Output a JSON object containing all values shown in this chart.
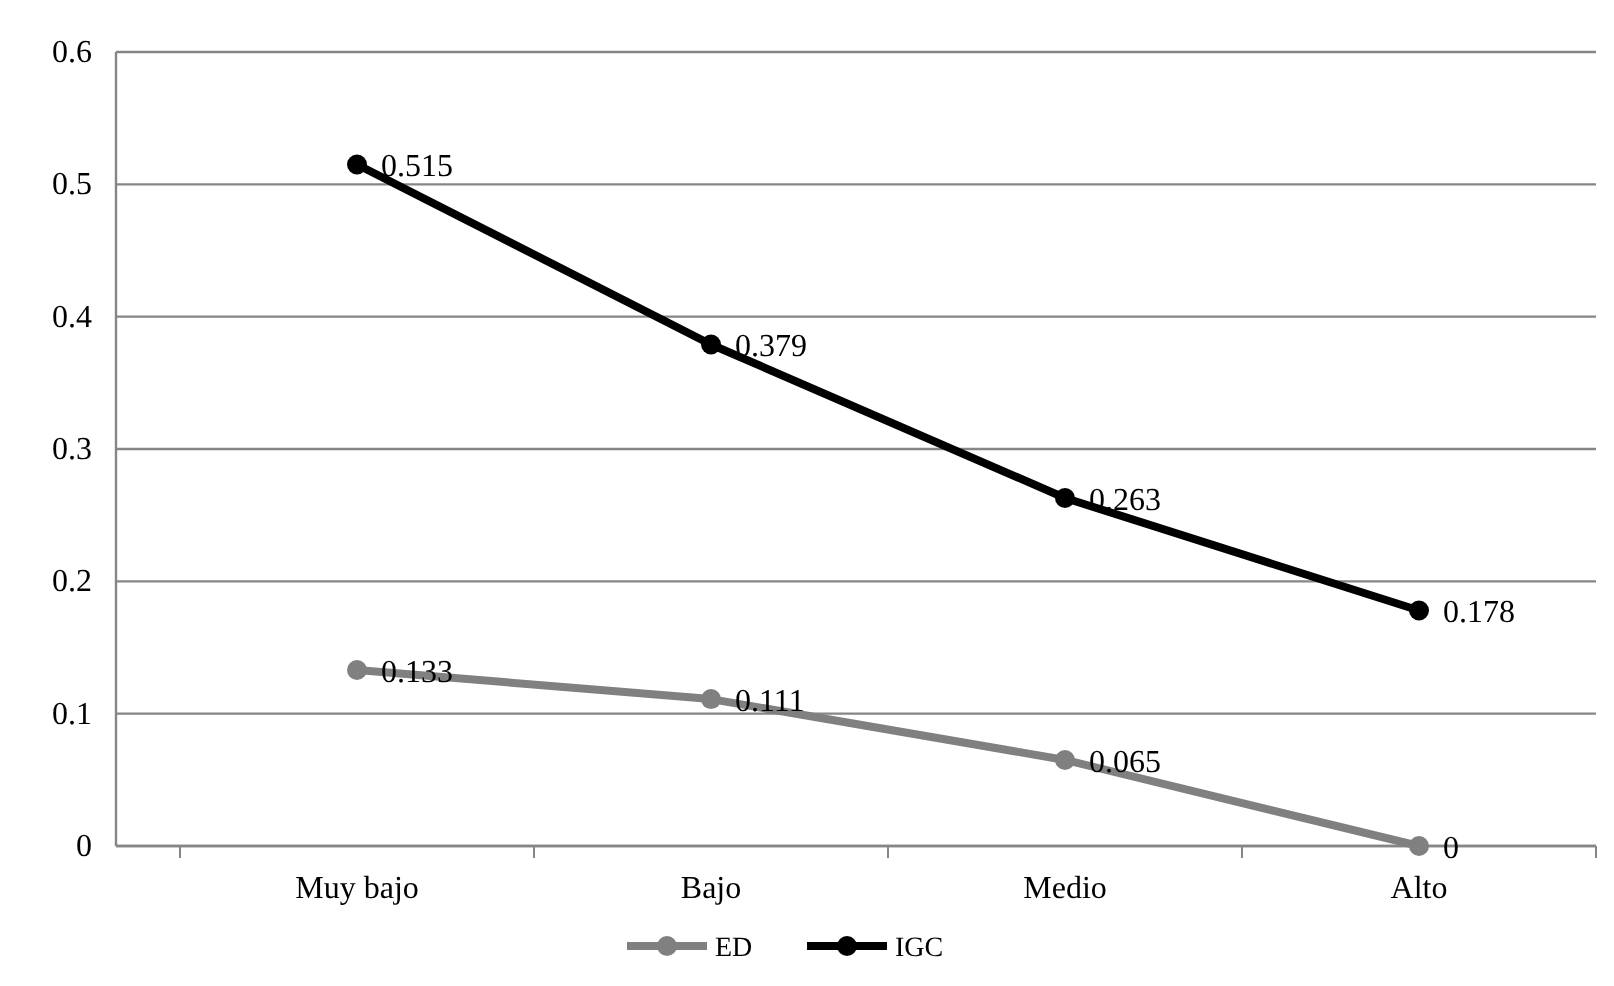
{
  "chart_data": {
    "type": "line",
    "categories": [
      "Muy bajo",
      "Bajo",
      "Medio",
      "Alto"
    ],
    "series": [
      {
        "name": "ED",
        "color": "#808080",
        "values": [
          0.133,
          0.111,
          0.065,
          0
        ]
      },
      {
        "name": "IGC",
        "color": "#000000",
        "values": [
          0.515,
          0.379,
          0.263,
          0.178
        ]
      }
    ],
    "ylim": [
      0,
      0.6
    ],
    "yticks": [
      0,
      0.1,
      0.2,
      0.3,
      0.4,
      0.5,
      0.6
    ],
    "grid": "y",
    "legend": "bottom",
    "marker": "circle",
    "line_style": "solid",
    "data_labels": true
  }
}
